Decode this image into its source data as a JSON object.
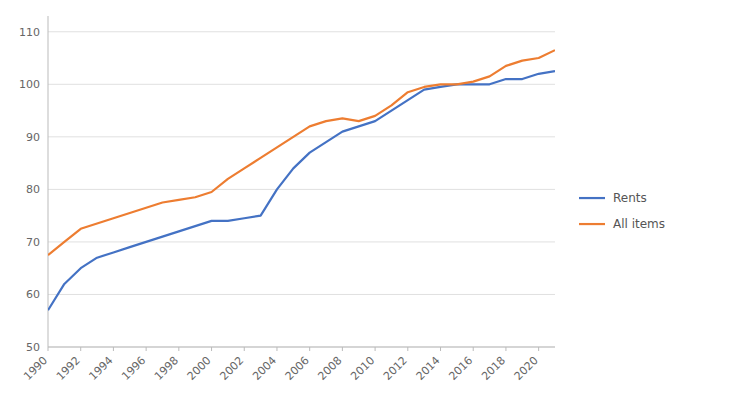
{
  "chart_data": {
    "type": "line",
    "x": [
      1990,
      1991,
      1992,
      1993,
      1994,
      1995,
      1996,
      1997,
      1998,
      1999,
      2000,
      2001,
      2002,
      2003,
      2004,
      2005,
      2006,
      2007,
      2008,
      2009,
      2010,
      2011,
      2012,
      2013,
      2014,
      2015,
      2016,
      2017,
      2018,
      2019,
      2020,
      2021
    ],
    "series": [
      {
        "name": "Rents",
        "color": "#4472C4",
        "values": [
          57,
          62,
          65,
          67,
          68,
          69,
          70,
          71,
          72,
          73,
          74,
          74,
          74.5,
          75,
          80,
          84,
          87,
          89,
          91,
          92,
          93,
          95,
          97,
          99,
          99.5,
          100,
          100,
          100,
          101,
          101,
          102,
          102.5
        ]
      },
      {
        "name": "All items",
        "color": "#ED7D31",
        "values": [
          67.5,
          70,
          72.5,
          73.5,
          74.5,
          75.5,
          76.5,
          77.5,
          78,
          78.5,
          79.5,
          82,
          84,
          86,
          88,
          90,
          92,
          93,
          93.5,
          93,
          94,
          96,
          98.5,
          99.5,
          100,
          100,
          100.5,
          101.5,
          103.5,
          104.5,
          105,
          106.5
        ]
      }
    ],
    "xlim": [
      1990,
      2021
    ],
    "xticks": [
      1990,
      1992,
      1994,
      1996,
      1998,
      2000,
      2002,
      2004,
      2006,
      2008,
      2010,
      2012,
      2014,
      2016,
      2018,
      2020
    ],
    "ylim": [
      50,
      113
    ],
    "yticks": [
      50,
      60,
      70,
      80,
      90,
      100,
      110
    ],
    "grid": "y",
    "legend": "right"
  }
}
